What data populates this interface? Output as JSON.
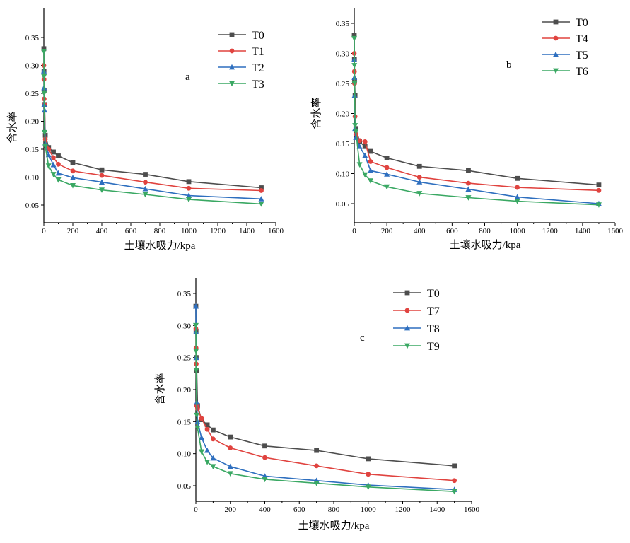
{
  "chart_data": [
    {
      "type": "line",
      "panel_label": "a",
      "xlabel": "土壤水吸力/kpa",
      "ylabel": "含水率",
      "xlim": [
        0,
        1600
      ],
      "ylim": [
        0.03,
        0.37
      ],
      "xticks": [
        0,
        200,
        400,
        600,
        800,
        1000,
        1200,
        1400,
        1600
      ],
      "yticks": [
        0.05,
        0.1,
        0.15,
        0.2,
        0.25,
        0.3,
        0.35
      ],
      "grid": false,
      "legend": "top-right",
      "x": [
        0,
        1,
        2,
        5,
        10,
        33,
        66,
        100,
        200,
        400,
        700,
        1000,
        1500
      ],
      "series": [
        {
          "name": "T0",
          "color": "#4d4d4d",
          "marker": "square",
          "values": [
            0.33,
            0.29,
            0.255,
            0.23,
            0.175,
            0.153,
            0.145,
            0.138,
            0.126,
            0.113,
            0.105,
            0.092,
            0.081
          ]
        },
        {
          "name": "T1",
          "color": "#e0433f",
          "marker": "circle",
          "values": [
            0.3,
            0.275,
            0.24,
            0.23,
            0.168,
            0.15,
            0.135,
            0.123,
            0.111,
            0.103,
            0.091,
            0.08,
            0.076
          ]
        },
        {
          "name": "T2",
          "color": "#2e6fbf",
          "marker": "triangle-up",
          "values": [
            0.29,
            0.26,
            0.23,
            0.22,
            0.16,
            0.14,
            0.122,
            0.107,
            0.099,
            0.091,
            0.079,
            0.067,
            0.061
          ]
        },
        {
          "name": "T3",
          "color": "#3aa863",
          "marker": "triangle-down",
          "values": [
            0.325,
            0.28,
            0.25,
            0.18,
            0.155,
            0.12,
            0.105,
            0.095,
            0.085,
            0.077,
            0.069,
            0.06,
            0.052
          ]
        }
      ]
    },
    {
      "type": "line",
      "panel_label": "b",
      "xlabel": "土壤水吸力/kpa",
      "ylabel": "含水率",
      "xlim": [
        0,
        1600
      ],
      "ylim": [
        0.03,
        0.37
      ],
      "xticks": [
        0,
        200,
        400,
        600,
        800,
        1000,
        1200,
        1400,
        1600
      ],
      "yticks": [
        0.05,
        0.1,
        0.15,
        0.2,
        0.25,
        0.3,
        0.35
      ],
      "grid": false,
      "legend": "top-right",
      "x": [
        0,
        1,
        2,
        5,
        10,
        33,
        66,
        100,
        200,
        400,
        700,
        1000,
        1500
      ],
      "series": [
        {
          "name": "T0",
          "color": "#4d4d4d",
          "marker": "square",
          "values": [
            0.33,
            0.29,
            0.255,
            0.23,
            0.175,
            0.153,
            0.145,
            0.137,
            0.126,
            0.112,
            0.105,
            0.092,
            0.081
          ]
        },
        {
          "name": "T4",
          "color": "#e0433f",
          "marker": "circle",
          "values": [
            0.3,
            0.27,
            0.25,
            0.195,
            0.165,
            0.155,
            0.153,
            0.12,
            0.11,
            0.094,
            0.084,
            0.077,
            0.072
          ]
        },
        {
          "name": "T5",
          "color": "#2e6fbf",
          "marker": "triangle-up",
          "values": [
            0.29,
            0.26,
            0.23,
            0.175,
            0.16,
            0.145,
            0.13,
            0.105,
            0.099,
            0.086,
            0.074,
            0.061,
            0.05
          ]
        },
        {
          "name": "T6",
          "color": "#3aa863",
          "marker": "triangle-down",
          "values": [
            0.325,
            0.28,
            0.25,
            0.18,
            0.17,
            0.115,
            0.098,
            0.088,
            0.078,
            0.067,
            0.06,
            0.054,
            0.048
          ]
        }
      ]
    },
    {
      "type": "line",
      "panel_label": "c",
      "xlabel": "土壤水吸力/kpa",
      "ylabel": "含水率",
      "xlim": [
        0,
        1600
      ],
      "ylim": [
        0.0,
        0.37
      ],
      "xticks": [
        0,
        200,
        400,
        600,
        800,
        1000,
        1200,
        1400,
        1600
      ],
      "yticks": [
        0.05,
        0.1,
        0.15,
        0.2,
        0.25,
        0.3,
        0.35
      ],
      "grid": false,
      "legend": "top-right",
      "x": [
        0,
        1,
        2,
        5,
        10,
        33,
        66,
        100,
        200,
        400,
        700,
        1000,
        1500
      ],
      "series": [
        {
          "name": "T0",
          "color": "#4d4d4d",
          "marker": "square",
          "values": [
            0.33,
            0.29,
            0.25,
            0.23,
            0.175,
            0.153,
            0.145,
            0.137,
            0.126,
            0.112,
            0.105,
            0.092,
            0.081
          ]
        },
        {
          "name": "T7",
          "color": "#e0433f",
          "marker": "circle",
          "values": [
            0.295,
            0.265,
            0.24,
            0.175,
            0.17,
            0.155,
            0.138,
            0.123,
            0.109,
            0.094,
            0.081,
            0.068,
            0.058
          ]
        },
        {
          "name": "T8",
          "color": "#2e6fbf",
          "marker": "triangle-up",
          "values": [
            0.33,
            0.29,
            0.25,
            0.18,
            0.15,
            0.125,
            0.105,
            0.093,
            0.08,
            0.065,
            0.058,
            0.051,
            0.044
          ]
        },
        {
          "name": "T9",
          "color": "#3aa863",
          "marker": "triangle-down",
          "values": [
            0.3,
            0.26,
            0.23,
            0.16,
            0.14,
            0.103,
            0.087,
            0.08,
            0.069,
            0.06,
            0.054,
            0.048,
            0.041
          ]
        }
      ]
    }
  ]
}
